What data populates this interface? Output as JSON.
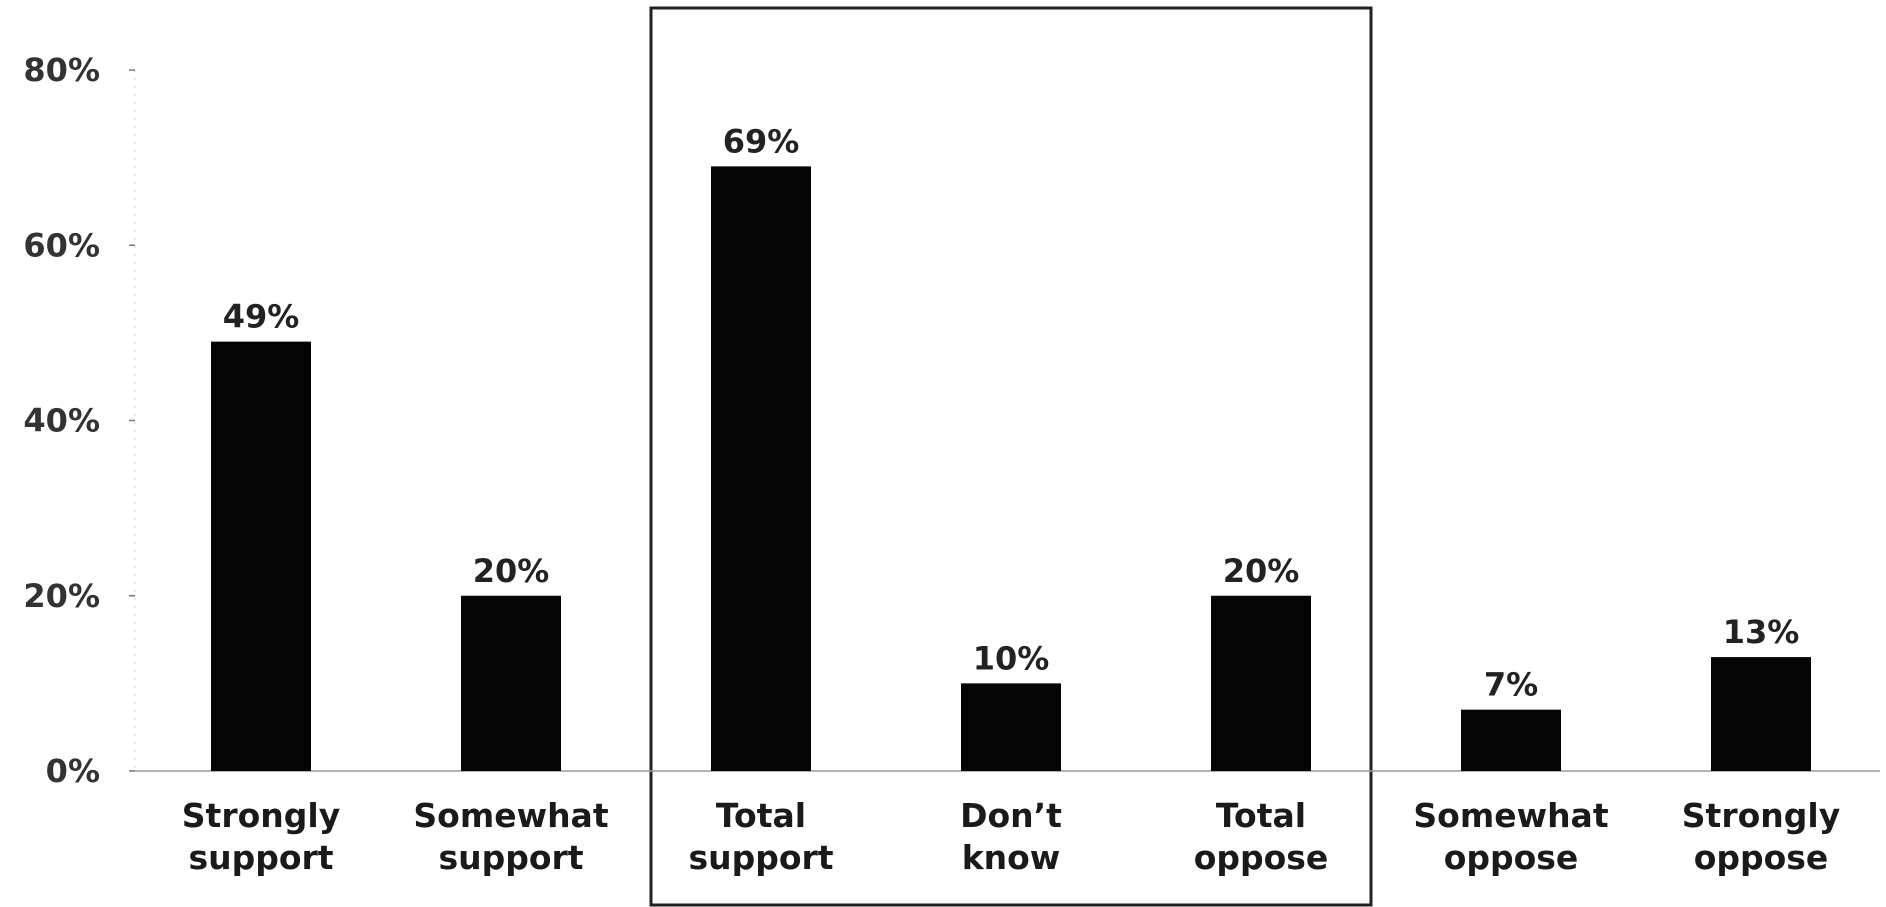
{
  "chart_data": {
    "type": "bar",
    "categories": [
      [
        "Strongly",
        "support"
      ],
      [
        "Somewhat",
        "support"
      ],
      [
        "Total",
        "support"
      ],
      [
        "Don’t",
        "know"
      ],
      [
        "Total",
        "oppose"
      ],
      [
        "Somewhat",
        "oppose"
      ],
      [
        "Strongly",
        "oppose"
      ]
    ],
    "values": [
      49,
      20,
      69,
      10,
      20,
      7,
      13
    ],
    "value_labels": [
      "49%",
      "20%",
      "69%",
      "10%",
      "20%",
      "7%",
      "13%"
    ],
    "yticks": [
      0,
      20,
      40,
      60,
      80
    ],
    "ytick_labels": [
      "0%",
      "20%",
      "40%",
      "60%",
      "80%"
    ],
    "ylim": [
      0,
      80
    ],
    "highlight_box": {
      "from_index": 2,
      "to_index": 4
    },
    "grid": false,
    "colors": {
      "bar": "#050505",
      "text": "#222222",
      "box": "#222222",
      "axis": "#999999"
    }
  }
}
